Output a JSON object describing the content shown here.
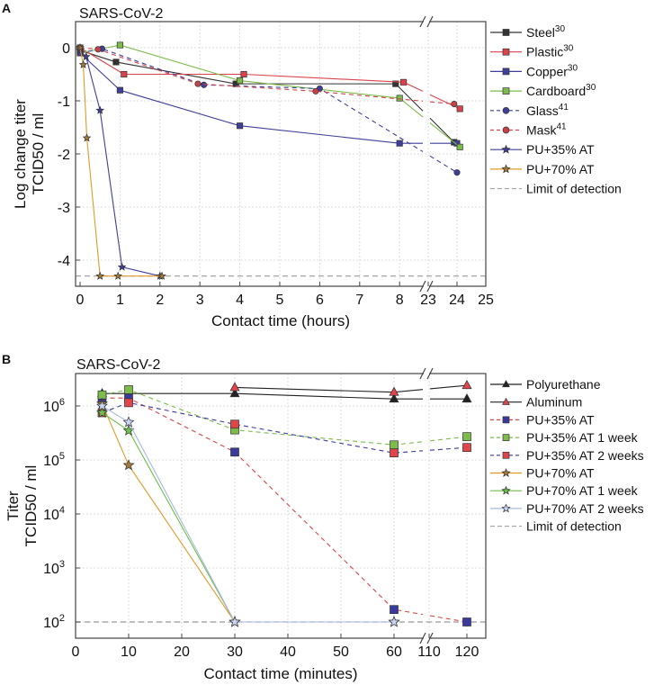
{
  "chart_data": [
    {
      "panel_label": "A",
      "type": "line",
      "title": "SARS-CoV-2",
      "xlabel": "Contact time (hours)",
      "ylabel": [
        "Log change titer",
        "TCID50 / ml"
      ],
      "xlim": [
        -0.1,
        25
      ],
      "x_break": [
        8.6,
        22.9
      ],
      "ylim": [
        -4.5,
        0.5
      ],
      "xticks": [
        0,
        1,
        2,
        3,
        4,
        5,
        6,
        7,
        8,
        23,
        24,
        25
      ],
      "yticks": [
        0,
        -1,
        -2,
        -3,
        -4
      ],
      "grid": true,
      "legend_position": "right",
      "limit_of_detection": -4.3,
      "series": [
        {
          "name": "Steel",
          "sup": "30",
          "color": "#333333",
          "marker_color": "#333333",
          "marker": "square",
          "dash": false,
          "x": [
            0,
            0.9,
            3.9,
            7.9,
            23.9
          ],
          "y": [
            -0.05,
            -0.27,
            -0.68,
            -0.68,
            -1.78
          ]
        },
        {
          "name": "Plastic",
          "sup": "30",
          "color": "#d9434a",
          "marker_color": "#d9434a",
          "marker": "square",
          "dash": false,
          "x": [
            0,
            1.1,
            4.1,
            8.1,
            24.1
          ],
          "y": [
            0,
            -0.5,
            -0.5,
            -0.65,
            -1.15
          ]
        },
        {
          "name": "Copper",
          "sup": "30",
          "color": "#3f3f9a",
          "marker_color": "#3f3f9a",
          "marker": "square",
          "dash": false,
          "x": [
            0,
            1,
            4,
            8,
            24
          ],
          "y": [
            -0.1,
            -0.8,
            -1.47,
            -1.8,
            -1.8
          ]
        },
        {
          "name": "Cardboard",
          "sup": "30",
          "color": "#7dbb4a",
          "marker_color": "#7dbb4a",
          "marker": "square",
          "dash": false,
          "x": [
            0,
            1,
            4,
            8,
            24.1
          ],
          "y": [
            -0.1,
            0.05,
            -0.62,
            -0.95,
            -1.87
          ]
        },
        {
          "name": "Glass",
          "sup": "41",
          "color": "#3f3f9a",
          "marker_color": "#3f3f9a",
          "marker": "circle",
          "dash": true,
          "x": [
            0,
            0.55,
            3.1,
            6,
            24
          ],
          "y": [
            -0.1,
            -0.02,
            -0.7,
            -0.77,
            -2.35
          ]
        },
        {
          "name": "Mask",
          "sup": "41",
          "color": "#d9434a",
          "marker_color": "#c74048",
          "marker": "circle",
          "dash": true,
          "x": [
            0,
            0.45,
            2.95,
            5.9,
            23.9
          ],
          "y": [
            0,
            -0.03,
            -0.68,
            -0.82,
            -1.06
          ]
        },
        {
          "name": "PU+35% AT",
          "sup": "",
          "color": "#3f3f9a",
          "marker_color": "#3f3f9a",
          "marker": "star",
          "dash": false,
          "x": [
            0,
            0.15,
            0.5,
            1.05,
            2
          ],
          "y": [
            -0.05,
            -0.17,
            -1.18,
            -4.13,
            -4.3
          ]
        },
        {
          "name": "PU+70% AT",
          "sup": "",
          "color": "#e09a2a",
          "marker_color": "#a07a3a",
          "marker": "star",
          "dash": false,
          "x": [
            0,
            0.08,
            0.17,
            0.5,
            0.95,
            2.05
          ],
          "y": [
            0,
            -0.32,
            -1.7,
            -4.3,
            -4.3,
            -4.3
          ]
        }
      ],
      "lod_label": "Limit of detection"
    },
    {
      "panel_label": "B",
      "type": "line",
      "title": "SARS-CoV-2",
      "xlabel": "Contact time (minutes)",
      "ylabel": [
        "Titer",
        "TCID50 / ml"
      ],
      "xlim": [
        0,
        124
      ],
      "x_break": [
        66,
        109
      ],
      "yscale": "log",
      "ylim_log10": [
        1.7,
        6.6
      ],
      "xticks": [
        0,
        10,
        20,
        30,
        40,
        50,
        60,
        110,
        120
      ],
      "yticks_exp": [
        2,
        3,
        4,
        5,
        6
      ],
      "grid": true,
      "legend_position": "right",
      "limit_of_detection": 100,
      "series": [
        {
          "name": "Polyurethane",
          "color": "#222222",
          "marker_color": "#222222",
          "marker": "triangle",
          "dash": false,
          "x": [
            5,
            30,
            60,
            120
          ],
          "y": [
            1700000,
            1700000,
            1350000,
            1350000
          ]
        },
        {
          "name": "Aluminum",
          "color": "#222222",
          "marker_color": "#e0454a",
          "marker": "triangle",
          "dash": false,
          "x": [
            30,
            60,
            120
          ],
          "y": [
            2200000,
            1800000,
            2400000
          ]
        },
        {
          "name": "PU+35% AT",
          "color": "#d9434a",
          "marker_color": "#3a3a9e",
          "marker": "square",
          "dash": true,
          "x": [
            5,
            10,
            30,
            60,
            120
          ],
          "y": [
            1400000,
            1400000,
            140000,
            170,
            100
          ]
        },
        {
          "name": "PU+35% AT 1 week",
          "color": "#7dbb4a",
          "marker_color": "#7dbb4a",
          "marker": "square",
          "dash": true,
          "x": [
            5,
            10,
            30,
            60,
            120
          ],
          "y": [
            1600000,
            2000000,
            360000,
            190000,
            270000
          ]
        },
        {
          "name": "PU+35% AT 2 weeks",
          "color": "#3a3a9e",
          "marker_color": "#e0454a",
          "marker": "square",
          "dash": true,
          "x": [
            5,
            10,
            30,
            60,
            120
          ],
          "y": [
            750000,
            1150000,
            460000,
            135000,
            170000
          ]
        },
        {
          "name": "PU+70% AT",
          "color": "#e09a2a",
          "marker_color": "#a07a3a",
          "marker": "star",
          "dash": false,
          "x": [
            5,
            10,
            30
          ],
          "y": [
            1100000,
            80000,
            100
          ]
        },
        {
          "name": "PU+70% AT 1 week",
          "color": "#6cbf4a",
          "marker_color": "#6cbf4a",
          "marker": "star",
          "dash": false,
          "x": [
            5,
            10,
            30,
            60
          ],
          "y": [
            750000,
            350000,
            100,
            100
          ]
        },
        {
          "name": "PU+70% AT 2 weeks",
          "color": "#a8b8e0",
          "marker_color": "#c8d4f0",
          "marker": "star",
          "dash": false,
          "x": [
            5,
            10,
            30,
            60
          ],
          "y": [
            1000000,
            500000,
            100,
            100
          ]
        }
      ],
      "lod_label": "Limit of detection"
    }
  ]
}
